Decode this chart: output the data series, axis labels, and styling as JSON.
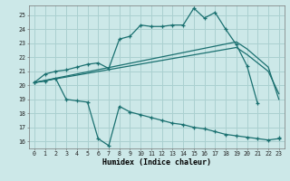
{
  "xlabel": "Humidex (Indice chaleur)",
  "bg_color": "#cce8e8",
  "grid_color": "#aad0d0",
  "line_color": "#1a7070",
  "xlim": [
    -0.5,
    23.5
  ],
  "ylim": [
    15.5,
    25.7
  ],
  "yticks": [
    16,
    17,
    18,
    19,
    20,
    21,
    22,
    23,
    24,
    25
  ],
  "xticks": [
    0,
    1,
    2,
    3,
    4,
    5,
    6,
    7,
    8,
    9,
    10,
    11,
    12,
    13,
    14,
    15,
    16,
    17,
    18,
    19,
    20,
    21,
    22,
    23
  ],
  "line1_x": [
    0,
    1,
    2,
    3,
    4,
    5,
    6,
    7,
    8,
    9,
    10,
    11,
    12,
    13,
    14,
    15,
    16,
    17,
    18,
    19,
    20,
    21,
    22,
    23
  ],
  "line1_y": [
    20.2,
    20.8,
    21.0,
    21.1,
    21.3,
    21.5,
    21.6,
    21.2,
    23.3,
    23.5,
    24.3,
    24.2,
    24.2,
    24.3,
    24.3,
    25.5,
    24.8,
    25.2,
    24.0,
    22.9,
    21.4,
    18.7,
    null,
    16.3
  ],
  "line2_x": [
    0,
    19,
    20,
    22,
    23
  ],
  "line2_y": [
    20.2,
    23.1,
    22.6,
    21.3,
    19.0
  ],
  "line3_x": [
    0,
    19,
    20,
    22,
    23
  ],
  "line3_y": [
    20.2,
    22.7,
    22.2,
    21.0,
    19.4
  ],
  "line4_x": [
    0,
    1,
    2,
    3,
    4,
    5,
    6,
    7,
    8,
    9,
    10,
    11,
    12,
    13,
    14,
    15,
    16,
    17,
    18,
    19,
    20,
    21,
    22,
    23
  ],
  "line4_y": [
    20.2,
    20.3,
    20.5,
    19.0,
    18.9,
    18.8,
    16.2,
    15.7,
    18.5,
    18.1,
    17.9,
    17.7,
    17.5,
    17.3,
    17.2,
    17.0,
    16.9,
    16.7,
    16.5,
    16.4,
    16.3,
    16.2,
    16.1,
    16.2
  ]
}
